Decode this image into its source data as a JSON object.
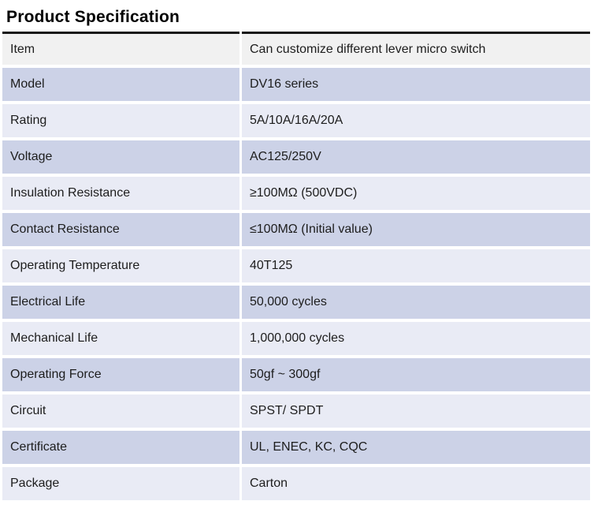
{
  "title": "Product Specification",
  "table": {
    "rows": [
      {
        "label": "Item",
        "value": "Can customize different lever micro switch"
      },
      {
        "label": "Model",
        "value": "DV16 series"
      },
      {
        "label": "Rating",
        "value": "5A/10A/16A/20A"
      },
      {
        "label": "Voltage",
        "value": "AC125/250V"
      },
      {
        "label": "Insulation Resistance",
        "value": "≥100MΩ (500VDC)"
      },
      {
        "label": "Contact Resistance",
        "value": "≤100MΩ (Initial value)"
      },
      {
        "label": "Operating Temperature",
        "value": "40T125"
      },
      {
        "label": "Electrical Life",
        "value": "50,000 cycles"
      },
      {
        "label": "Mechanical Life",
        "value": "1,000,000 cycles"
      },
      {
        "label": "Operating Force",
        "value": "50gf ~ 300gf"
      },
      {
        "label": "Circuit",
        "value": "SPST/ SPDT"
      },
      {
        "label": "Certificate",
        "value": "UL, ENEC, KC, CQC"
      },
      {
        "label": "Package",
        "value": "Carton"
      }
    ]
  },
  "colors": {
    "header_row_bg": "#f1f1f1",
    "row_dark_bg": "#ccd2e7",
    "row_light_bg": "#e9ebf5",
    "top_border": "#161616",
    "text": "#1d1d1d"
  }
}
